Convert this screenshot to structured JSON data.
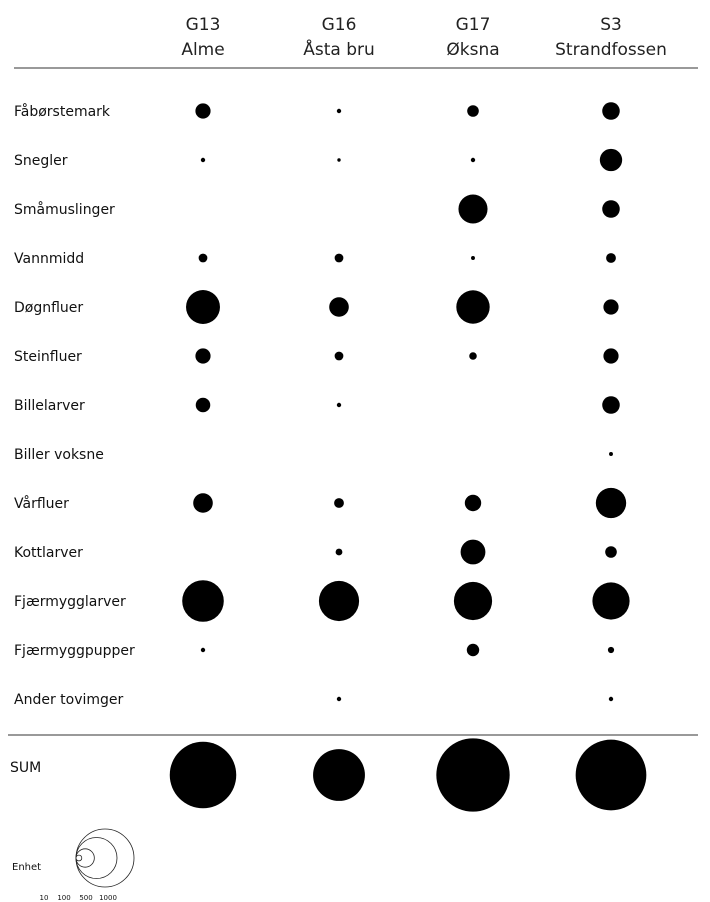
{
  "chart_data": {
    "type": "bubble-matrix",
    "columns": [
      {
        "code": "G13",
        "name": "Alme"
      },
      {
        "code": "G16",
        "name": "Åsta bru"
      },
      {
        "code": "G17",
        "name": "Øksna"
      },
      {
        "code": "S3",
        "name": "Strandfossen"
      }
    ],
    "rows": [
      {
        "label": "Fåbørstemark",
        "values": [
          60,
          5,
          35,
          80
        ]
      },
      {
        "label": "Snegler",
        "values": [
          5,
          3,
          5,
          130
        ]
      },
      {
        "label": "Småmuslinger",
        "values": [
          0,
          0,
          220,
          80
        ]
      },
      {
        "label": "Vannmidd",
        "values": [
          20,
          20,
          4,
          25
        ]
      },
      {
        "label": "Døgnfluer",
        "values": [
          300,
          100,
          290,
          60
        ]
      },
      {
        "label": "Steinfluer",
        "values": [
          60,
          20,
          15,
          60
        ]
      },
      {
        "label": "Billelarver",
        "values": [
          55,
          5,
          0,
          80
        ]
      },
      {
        "label": "Biller voksne",
        "values": [
          0,
          0,
          0,
          4
        ]
      },
      {
        "label": "Vårfluer",
        "values": [
          100,
          25,
          70,
          240
        ]
      },
      {
        "label": "Kottlarver",
        "values": [
          0,
          12,
          160,
          35
        ]
      },
      {
        "label": "Fjærmygglarver",
        "values": [
          450,
          420,
          380,
          360
        ]
      },
      {
        "label": "Fjærmyggpupper",
        "values": [
          5,
          0,
          40,
          10
        ]
      },
      {
        "label": "Ander tovimger",
        "values": [
          0,
          5,
          0,
          5
        ]
      }
    ],
    "sum": {
      "label": "SUM",
      "values": [
        1150,
        700,
        1400,
        1300
      ]
    },
    "legend": {
      "label": "Enhet",
      "ticks": [
        "10",
        "100",
        "500",
        "1000"
      ],
      "values": [
        10,
        100,
        500,
        1000
      ]
    }
  }
}
